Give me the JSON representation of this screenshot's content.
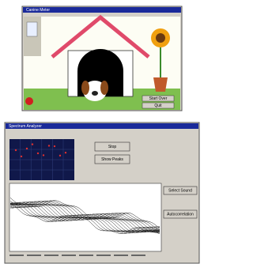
{
  "windows": [
    {
      "title": "Canine Meter",
      "buttons": [
        "Start Over",
        "Quit"
      ]
    },
    {
      "title": "Spectrum Analyzer",
      "buttons": [
        "Stop",
        "Show Peaks",
        "Select Sound",
        "Autocorrelation"
      ]
    }
  ]
}
